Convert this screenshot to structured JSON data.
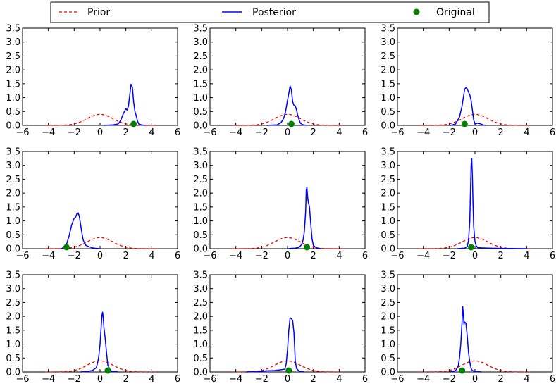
{
  "legend": {
    "placement": "top",
    "entries": [
      {
        "label": "Prior",
        "style": "dashed",
        "color": "#ff0000"
      },
      {
        "label": "Posterior",
        "style": "solid",
        "color": "#0000ff"
      },
      {
        "label": "Original",
        "style": "marker",
        "color": "#008000"
      }
    ]
  },
  "chart_data": {
    "type": "line",
    "layout": "3x3 grid of subplots",
    "xlim": [
      -6,
      6
    ],
    "ylim": [
      0,
      3.5
    ],
    "xticks": [
      -6,
      -4,
      -2,
      0,
      2,
      4,
      6
    ],
    "yticks": [
      0.0,
      0.5,
      1.0,
      1.5,
      2.0,
      2.5,
      3.0,
      3.5
    ],
    "xtick_labels": [
      "−6",
      "−4",
      "−2",
      "0",
      "2",
      "4",
      "6"
    ],
    "ytick_labels": [
      "0.0",
      "0.5",
      "1.0",
      "1.5",
      "2.0",
      "2.5",
      "3.0",
      "3.5"
    ],
    "grid": false,
    "prior": {
      "name": "Prior",
      "color": "#ff0000",
      "dash": "dashed",
      "distribution": "standard normal",
      "mean": 0,
      "std": 1,
      "x_range": [
        -4.3,
        4.3
      ]
    },
    "panels": [
      {
        "original": 2.6,
        "posterior": {
          "name": "Posterior",
          "color": "#0000ff",
          "x": [
            0.3,
            1.0,
            1.4,
            1.6,
            1.8,
            2.0,
            2.1,
            2.2,
            2.3,
            2.4,
            2.5,
            2.6,
            2.7,
            2.8,
            2.9,
            3.0,
            3.2,
            3.5
          ],
          "y": [
            0.0,
            0.02,
            0.05,
            0.18,
            0.42,
            0.6,
            0.55,
            0.7,
            1.1,
            1.48,
            1.38,
            0.85,
            0.5,
            0.35,
            0.15,
            0.05,
            0.02,
            0.0
          ]
        }
      },
      {
        "original": 0.3,
        "posterior": {
          "name": "Posterior",
          "color": "#0000ff",
          "x": [
            -1.6,
            -0.8,
            -0.5,
            -0.3,
            -0.15,
            0.0,
            0.1,
            0.2,
            0.3,
            0.4,
            0.5,
            0.6,
            0.7,
            0.8,
            0.9,
            1.0,
            1.2,
            1.5
          ],
          "y": [
            0.0,
            0.02,
            0.1,
            0.25,
            0.5,
            0.9,
            1.15,
            1.42,
            1.28,
            0.85,
            0.72,
            0.7,
            0.55,
            0.35,
            0.2,
            0.08,
            0.02,
            0.0
          ]
        }
      },
      {
        "original": -0.8,
        "posterior": {
          "name": "Posterior",
          "color": "#0000ff",
          "x": [
            -1.9,
            -1.5,
            -1.2,
            -1.0,
            -0.9,
            -0.8,
            -0.7,
            -0.6,
            -0.5,
            -0.4,
            -0.3,
            -0.2,
            -0.1,
            0.0,
            0.2,
            0.4,
            0.6,
            0.8
          ],
          "y": [
            0.0,
            0.05,
            0.3,
            0.7,
            1.0,
            1.3,
            1.36,
            1.32,
            1.2,
            1.1,
            0.9,
            0.55,
            0.2,
            0.05,
            0.08,
            0.06,
            0.02,
            0.0
          ]
        }
      },
      {
        "original": -2.6,
        "posterior": {
          "name": "Posterior",
          "color": "#0000ff",
          "x": [
            -3.0,
            -2.8,
            -2.6,
            -2.4,
            -2.2,
            -2.0,
            -1.9,
            -1.8,
            -1.7,
            -1.6,
            -1.5,
            -1.4,
            -1.3,
            -1.1,
            -0.9,
            -0.6,
            -0.3,
            0.0
          ],
          "y": [
            0.0,
            0.05,
            0.15,
            0.45,
            0.85,
            1.1,
            1.12,
            1.25,
            1.3,
            1.15,
            0.85,
            0.55,
            0.3,
            0.12,
            0.08,
            0.03,
            0.01,
            0.0
          ]
        }
      },
      {
        "original": 1.5,
        "posterior": {
          "name": "Posterior",
          "color": "#0000ff",
          "x": [
            0.0,
            0.6,
            0.9,
            1.1,
            1.2,
            1.3,
            1.4,
            1.45,
            1.5,
            1.55,
            1.6,
            1.7,
            1.8,
            1.9,
            2.0,
            2.2,
            2.4,
            2.6
          ],
          "y": [
            0.0,
            0.02,
            0.05,
            0.15,
            0.3,
            0.6,
            1.3,
            2.1,
            2.22,
            1.9,
            1.7,
            1.5,
            0.9,
            0.35,
            0.12,
            0.04,
            0.01,
            0.0
          ]
        }
      },
      {
        "original": -0.3,
        "posterior": {
          "name": "Posterior",
          "color": "#0000ff",
          "x": [
            -1.4,
            -0.8,
            -0.6,
            -0.5,
            -0.4,
            -0.35,
            -0.3,
            -0.25,
            -0.2,
            -0.15,
            -0.1,
            0.0,
            0.1,
            0.2,
            0.5,
            1.0,
            2.0,
            4.0
          ],
          "y": [
            0.0,
            0.02,
            0.08,
            0.3,
            1.0,
            2.0,
            3.0,
            3.25,
            2.6,
            1.6,
            0.8,
            0.25,
            0.1,
            0.04,
            0.03,
            0.02,
            0.01,
            0.0
          ]
        }
      },
      {
        "original": 0.6,
        "posterior": {
          "name": "Posterior",
          "color": "#0000ff",
          "x": [
            -1.5,
            -1.0,
            -0.6,
            -0.3,
            -0.2,
            -0.1,
            0.0,
            0.1,
            0.15,
            0.2,
            0.25,
            0.3,
            0.4,
            0.5,
            0.6,
            0.8,
            1.0,
            1.4
          ],
          "y": [
            0.0,
            0.02,
            0.05,
            0.15,
            0.3,
            0.55,
            1.0,
            1.7,
            2.05,
            2.15,
            1.95,
            1.6,
            1.2,
            0.7,
            0.25,
            0.05,
            0.02,
            0.0
          ]
        }
      },
      {
        "original": 0.1,
        "posterior": {
          "name": "Posterior",
          "color": "#0000ff",
          "x": [
            -3.2,
            -2.4,
            -1.6,
            -1.0,
            -0.5,
            -0.2,
            -0.1,
            0.0,
            0.1,
            0.2,
            0.3,
            0.4,
            0.5,
            0.55,
            0.6,
            0.7,
            0.9,
            1.3
          ],
          "y": [
            0.0,
            0.02,
            0.04,
            0.05,
            0.08,
            0.1,
            0.3,
            0.8,
            1.5,
            1.95,
            1.92,
            1.85,
            1.4,
            0.9,
            0.4,
            0.12,
            0.03,
            0.0
          ]
        }
      },
      {
        "original": -1.0,
        "posterior": {
          "name": "Posterior",
          "color": "#0000ff",
          "x": [
            -1.9,
            -1.5,
            -1.3,
            -1.2,
            -1.1,
            -1.0,
            -0.95,
            -0.9,
            -0.85,
            -0.8,
            -0.7,
            -0.6,
            -0.5,
            -0.4,
            -0.3,
            -0.2,
            0.0,
            0.5
          ],
          "y": [
            0.0,
            0.05,
            0.2,
            0.5,
            1.0,
            1.8,
            2.35,
            2.1,
            1.7,
            1.8,
            1.75,
            1.3,
            0.7,
            0.35,
            0.12,
            0.05,
            0.02,
            0.0
          ]
        }
      }
    ]
  }
}
